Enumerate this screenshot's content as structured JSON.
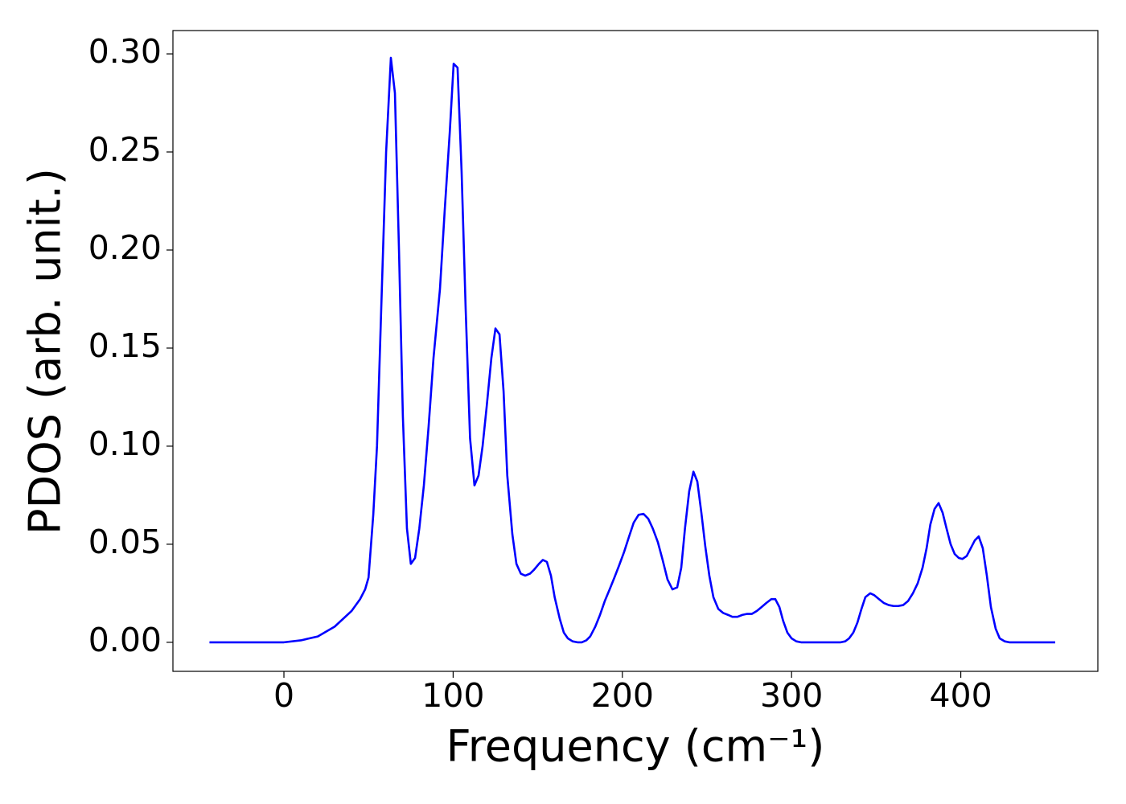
{
  "chart_data": {
    "type": "line",
    "xlabel": "Frequency (cm⁻¹)",
    "ylabel": "PDOS (arb. unit.)",
    "xlim": [
      -65.6,
      481
    ],
    "ylim": [
      -0.0148,
      0.3119
    ],
    "xticks": [
      0,
      100,
      200,
      300,
      400
    ],
    "yticks": [
      {
        "value": 0,
        "label": "0.00"
      },
      0.05,
      {
        "value": 0.1,
        "label": "0.10"
      },
      0.15,
      {
        "value": 0.2,
        "label": "0.20"
      },
      0.25,
      {
        "value": 0.3,
        "label": "0.30"
      }
    ],
    "grid": false,
    "series": [
      {
        "color": "#0000ff",
        "x": [
          -44,
          0,
          10,
          20,
          30,
          40,
          45,
          48,
          50,
          52.8,
          55,
          57.5,
          60.4,
          63.2,
          65.6,
          68,
          70.3,
          72.7,
          75,
          77.5,
          80,
          82.7,
          85.5,
          88.4,
          92.2,
          95,
          98,
          100.3,
          102.6,
          105,
          107.4,
          110,
          112.6,
          115,
          117.4,
          119.8,
          122.6,
          125,
          127.4,
          129.8,
          132,
          135,
          137.4,
          140,
          142.6,
          145.4,
          147.8,
          150.7,
          153,
          155.4,
          157.8,
          160,
          163,
          165.4,
          167.8,
          170.6,
          173.5,
          176,
          178.7,
          181,
          184,
          186.8,
          189.6,
          192.5,
          195.3,
          198,
          201,
          204,
          206.7,
          209.6,
          212.5,
          215.3,
          218,
          221,
          223.8,
          226.7,
          229.6,
          232.4,
          234.8,
          237,
          239.5,
          242,
          244.3,
          246.7,
          249,
          251.4,
          253.8,
          256.7,
          259.5,
          262.4,
          265,
          268,
          271,
          273.8,
          276.6,
          279.5,
          282.3,
          285,
          288,
          290.4,
          292.8,
          295,
          297.5,
          300,
          302.8,
          305.6,
          329,
          331.7,
          334,
          336.5,
          338.9,
          341.3,
          343.6,
          346.5,
          348.9,
          351.7,
          354.6,
          357.4,
          360.3,
          363,
          366,
          368.8,
          371.7,
          374.5,
          377.4,
          379.8,
          382,
          384.5,
          386.9,
          389.3,
          391.6,
          394,
          396.4,
          398.8,
          401,
          403.5,
          405.9,
          408.3,
          410.6,
          413,
          415.4,
          417.8,
          420.6,
          423,
          425.9,
          428.7,
          455.8
        ],
        "values": [
          0,
          0,
          0.001,
          0.003,
          0.008,
          0.016,
          0.022,
          0.027,
          0.033,
          0.065,
          0.1,
          0.17,
          0.25,
          0.298,
          0.28,
          0.2,
          0.115,
          0.058,
          0.04,
          0.043,
          0.058,
          0.08,
          0.11,
          0.145,
          0.18,
          0.22,
          0.26,
          0.295,
          0.293,
          0.24,
          0.17,
          0.104,
          0.08,
          0.085,
          0.1,
          0.12,
          0.145,
          0.16,
          0.157,
          0.128,
          0.085,
          0.055,
          0.04,
          0.035,
          0.034,
          0.035,
          0.037,
          0.04,
          0.042,
          0.041,
          0.034,
          0.023,
          0.012,
          0.005,
          0.002,
          0.0005,
          0,
          0,
          0.001,
          0.003,
          0.008,
          0.014,
          0.021,
          0.027,
          0.033,
          0.039,
          0.046,
          0.054,
          0.061,
          0.065,
          0.0655,
          0.063,
          0.058,
          0.051,
          0.042,
          0.032,
          0.027,
          0.028,
          0.038,
          0.058,
          0.077,
          0.087,
          0.082,
          0.066,
          0.049,
          0.034,
          0.023,
          0.017,
          0.015,
          0.014,
          0.013,
          0.013,
          0.014,
          0.0145,
          0.0145,
          0.016,
          0.018,
          0.02,
          0.022,
          0.022,
          0.018,
          0.011,
          0.005,
          0.002,
          0.0005,
          0,
          0,
          0.0005,
          0.002,
          0.005,
          0.01,
          0.017,
          0.023,
          0.025,
          0.024,
          0.022,
          0.02,
          0.019,
          0.0185,
          0.0185,
          0.019,
          0.021,
          0.025,
          0.03,
          0.038,
          0.048,
          0.06,
          0.068,
          0.071,
          0.066,
          0.058,
          0.05,
          0.045,
          0.043,
          0.0425,
          0.044,
          0.048,
          0.052,
          0.054,
          0.048,
          0.034,
          0.018,
          0.007,
          0.002,
          0.0005,
          0,
          0
        ]
      }
    ]
  }
}
